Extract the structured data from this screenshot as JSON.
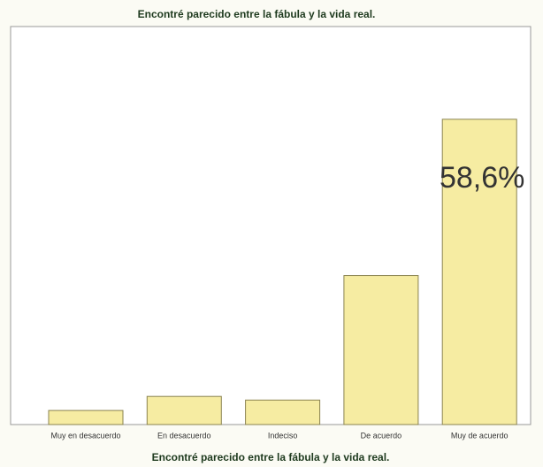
{
  "chart_data": {
    "type": "bar",
    "title": "Encontré parecido entre la fábula y la vida real.",
    "x_label": "Encontré parecido entre la fábula y la vida real.",
    "categories": [
      "Muy en desacuerdo",
      "En desacuerdo",
      "Indeciso",
      "De acuerdo",
      "Muy de acuerdo"
    ],
    "values": [
      2.7,
      5.4,
      4.7,
      28.6,
      58.6
    ],
    "value_labels": [
      null,
      null,
      null,
      null,
      "58,6%"
    ],
    "color": "#f6eca2",
    "ylim": [
      0,
      76.4
    ]
  }
}
